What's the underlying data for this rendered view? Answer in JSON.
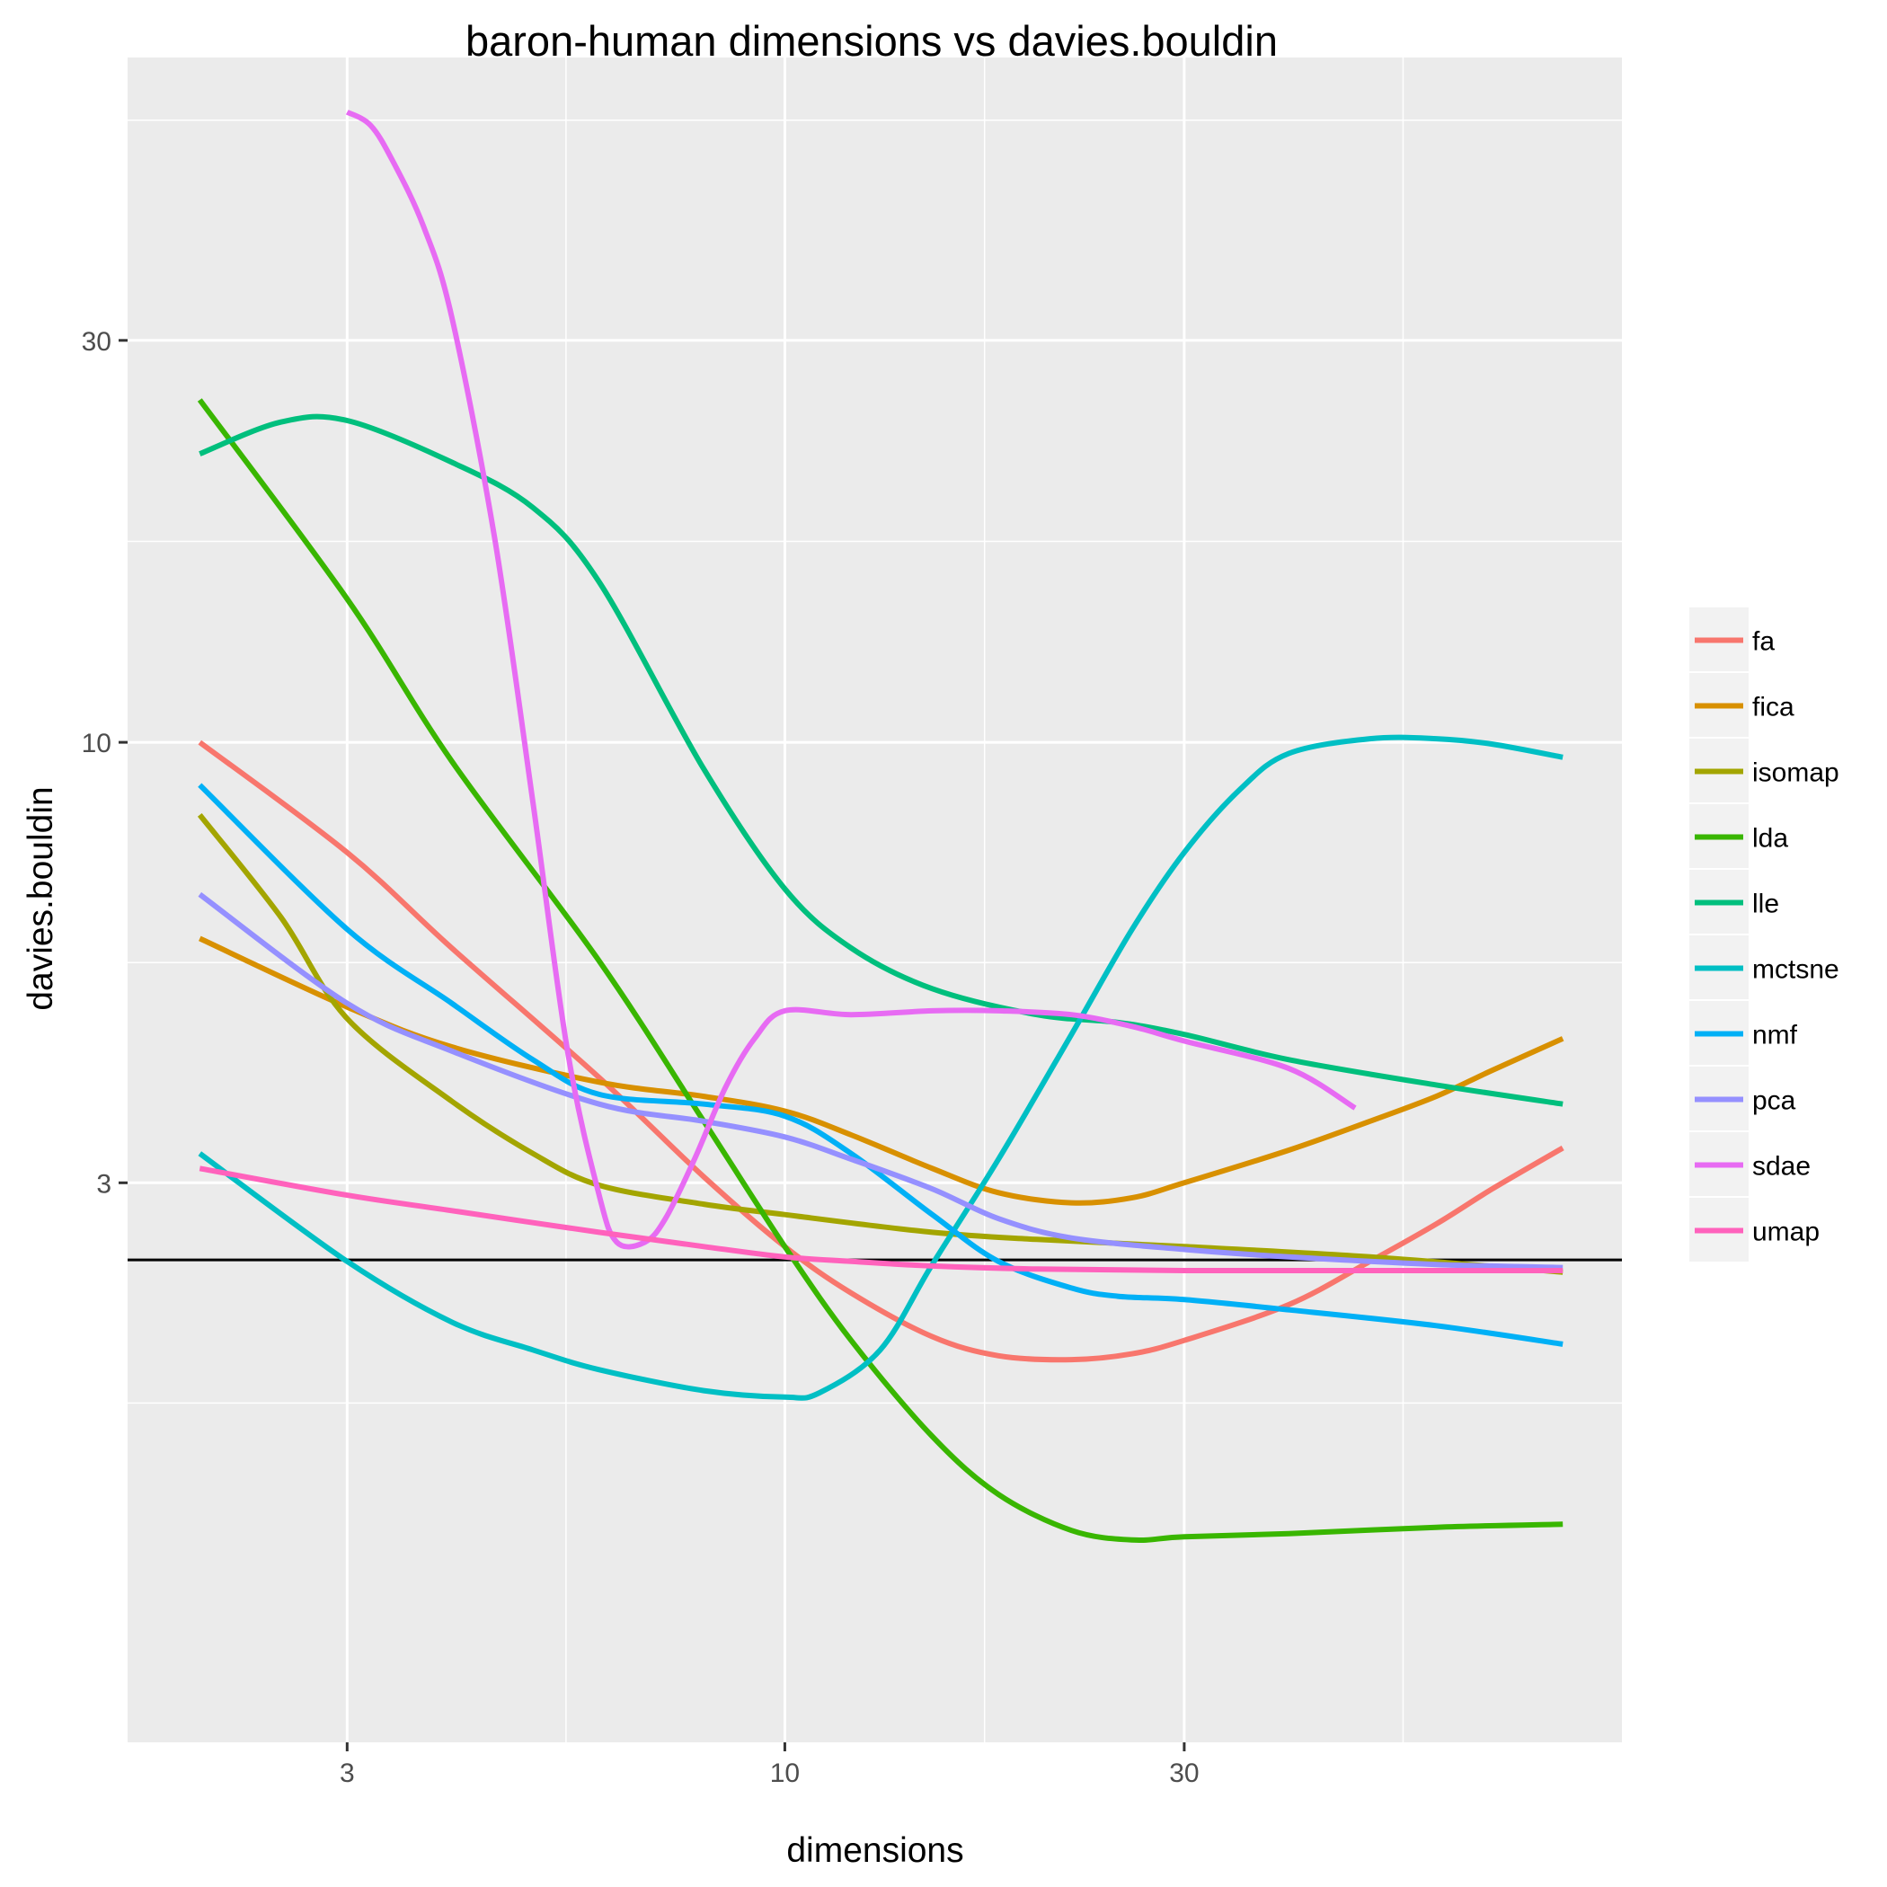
{
  "chart_data": {
    "type": "line",
    "title": "baron-human dimensions vs davies.bouldin",
    "xlabel": "dimensions",
    "ylabel": "davies.bouldin",
    "x_scale": "log10",
    "y_scale": "log10",
    "xlim": [
      1.64,
      100
    ],
    "ylim": [
      0.65,
      65
    ],
    "x_ticks": [
      3,
      10,
      30
    ],
    "x_tick_labels": [
      "3",
      "10",
      "30"
    ],
    "y_ticks": [
      3,
      10,
      30
    ],
    "y_tick_labels": [
      "3",
      "10",
      "30"
    ],
    "grid": true,
    "legend_position": "right",
    "reference_line": {
      "y": 2.43,
      "color": "#000000"
    },
    "series": [
      {
        "name": "fa",
        "color": "#F8766D",
        "x": [
          2,
          3,
          4,
          6,
          8,
          10,
          12,
          15,
          18,
          22,
          26,
          30,
          40,
          50,
          60,
          70,
          85
        ],
        "y": [
          10,
          7.4,
          5.7,
          4.0,
          3.05,
          2.52,
          2.22,
          1.97,
          1.87,
          1.85,
          1.88,
          1.95,
          2.15,
          2.42,
          2.68,
          2.95,
          3.3
        ]
      },
      {
        "name": "fica",
        "color": "#D89000",
        "x": [
          2,
          3,
          4,
          6,
          8,
          10,
          12,
          15,
          18,
          22,
          26,
          30,
          40,
          50,
          60,
          70,
          85
        ],
        "y": [
          5.85,
          4.85,
          4.35,
          3.95,
          3.8,
          3.65,
          3.42,
          3.12,
          2.92,
          2.84,
          2.88,
          3.0,
          3.28,
          3.55,
          3.8,
          4.08,
          4.45
        ]
      },
      {
        "name": "isomap",
        "color": "#A3A500",
        "x": [
          2,
          2.5,
          3,
          4,
          5,
          6,
          8,
          10,
          15,
          20,
          30,
          50,
          85
        ],
        "y": [
          8.2,
          6.2,
          4.7,
          3.75,
          3.25,
          2.98,
          2.83,
          2.75,
          2.62,
          2.57,
          2.52,
          2.45,
          2.35
        ]
      },
      {
        "name": "lda",
        "color": "#39B600",
        "x": [
          2,
          3,
          4,
          6,
          8,
          10,
          12,
          15,
          18,
          22,
          26,
          30,
          40,
          60,
          85
        ],
        "y": [
          25.5,
          14.8,
          9.5,
          5.5,
          3.55,
          2.52,
          1.95,
          1.5,
          1.28,
          1.16,
          1.13,
          1.14,
          1.15,
          1.17,
          1.18
        ]
      },
      {
        "name": "lle",
        "color": "#00BF7D",
        "x": [
          2,
          2.5,
          3,
          4,
          5,
          6,
          8,
          10,
          12,
          15,
          20,
          25,
          30,
          40,
          60,
          85
        ],
        "y": [
          22.0,
          24.0,
          24.1,
          21.5,
          19.0,
          15.5,
          9.3,
          6.7,
          5.7,
          5.1,
          4.75,
          4.65,
          4.5,
          4.2,
          3.92,
          3.72
        ]
      },
      {
        "name": "mctsne",
        "color": "#00BFC4",
        "x": [
          2,
          3,
          4,
          5,
          6,
          8,
          10,
          11,
          13,
          15,
          18,
          22,
          26,
          30,
          35,
          40,
          50,
          60,
          70,
          85
        ],
        "y": [
          3.25,
          2.42,
          2.05,
          1.9,
          1.8,
          1.7,
          1.67,
          1.69,
          1.9,
          2.4,
          3.2,
          4.5,
          6.0,
          7.4,
          8.8,
          9.7,
          10.1,
          10.1,
          9.95,
          9.6
        ]
      },
      {
        "name": "nmf",
        "color": "#00B0F6",
        "x": [
          2,
          3,
          4,
          5,
          6,
          8,
          10,
          12,
          15,
          18,
          22,
          25,
          30,
          40,
          60,
          85
        ],
        "y": [
          8.9,
          6.0,
          4.9,
          4.2,
          3.82,
          3.72,
          3.6,
          3.25,
          2.75,
          2.42,
          2.25,
          2.2,
          2.18,
          2.12,
          2.03,
          1.93
        ]
      },
      {
        "name": "pca",
        "color": "#9590FF",
        "x": [
          2,
          3,
          4,
          6,
          8,
          10,
          12,
          15,
          18,
          22,
          30,
          40,
          60,
          85
        ],
        "y": [
          6.6,
          4.9,
          4.3,
          3.72,
          3.55,
          3.4,
          3.2,
          2.95,
          2.72,
          2.58,
          2.5,
          2.45,
          2.4,
          2.38
        ]
      },
      {
        "name": "sdae",
        "color": "#E76BF3",
        "x": [
          3,
          3.2,
          3.4,
          3.7,
          4,
          4.5,
          5,
          5.5,
          6,
          6.3,
          6.8,
          7.2,
          7.8,
          8.5,
          9.2,
          10,
          12,
          15,
          18,
          22,
          26,
          30,
          40,
          48
        ],
        "y": [
          56.0,
          54.0,
          49.0,
          41.0,
          32.0,
          17.5,
          8.5,
          4.3,
          2.9,
          2.55,
          2.55,
          2.72,
          3.2,
          3.9,
          4.45,
          4.8,
          4.75,
          4.8,
          4.8,
          4.75,
          4.6,
          4.42,
          4.1,
          3.68
        ]
      },
      {
        "name": "umap",
        "color": "#FF62BC",
        "x": [
          2,
          3,
          4,
          6,
          8,
          10,
          12,
          15,
          20,
          30,
          50,
          85
        ],
        "y": [
          3.12,
          2.9,
          2.78,
          2.62,
          2.52,
          2.45,
          2.42,
          2.39,
          2.37,
          2.36,
          2.36,
          2.36
        ]
      }
    ]
  }
}
